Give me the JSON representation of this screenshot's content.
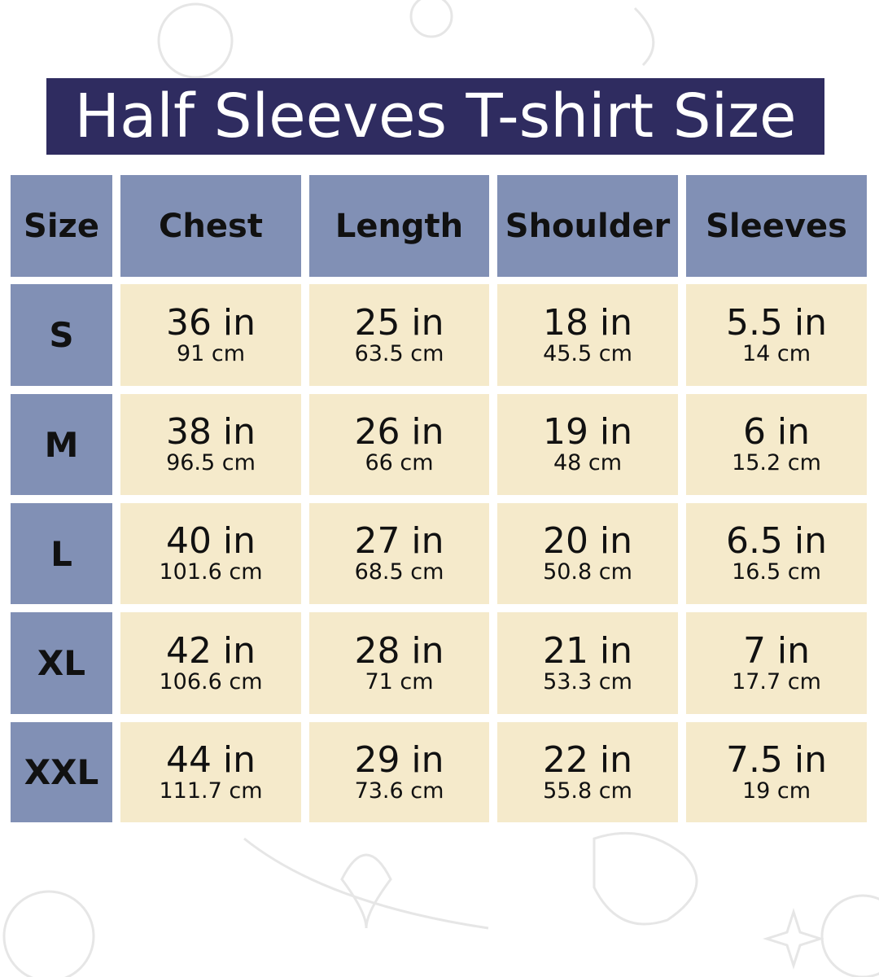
{
  "title": "Half Sleeves T-shirt Size",
  "colors": {
    "title_bg": "#2f2c60",
    "header_bg": "#8190b5",
    "cell_bg": "#f5eacb"
  },
  "headers": [
    "Size",
    "Chest",
    "Length",
    "Shoulder",
    "Sleeves"
  ],
  "rows": [
    {
      "size": "S",
      "values": [
        {
          "in": "36 in",
          "cm": "91 cm"
        },
        {
          "in": "25 in",
          "cm": "63.5 cm"
        },
        {
          "in": "18 in",
          "cm": "45.5 cm"
        },
        {
          "in": "5.5 in",
          "cm": "14 cm"
        }
      ]
    },
    {
      "size": "M",
      "values": [
        {
          "in": "38 in",
          "cm": "96.5 cm"
        },
        {
          "in": "26 in",
          "cm": "66 cm"
        },
        {
          "in": "19 in",
          "cm": "48 cm"
        },
        {
          "in": "6 in",
          "cm": "15.2 cm"
        }
      ]
    },
    {
      "size": "L",
      "values": [
        {
          "in": "40 in",
          "cm": "101.6 cm"
        },
        {
          "in": "27 in",
          "cm": "68.5 cm"
        },
        {
          "in": "20 in",
          "cm": "50.8 cm"
        },
        {
          "in": "6.5 in",
          "cm": "16.5 cm"
        }
      ]
    },
    {
      "size": "XL",
      "values": [
        {
          "in": "42 in",
          "cm": "106.6 cm"
        },
        {
          "in": "28 in",
          "cm": "71 cm"
        },
        {
          "in": "21 in",
          "cm": "53.3 cm"
        },
        {
          "in": "7 in",
          "cm": "17.7 cm"
        }
      ]
    },
    {
      "size": "XXL",
      "values": [
        {
          "in": "44 in",
          "cm": "111.7 cm"
        },
        {
          "in": "29 in",
          "cm": "73.6 cm"
        },
        {
          "in": "22 in",
          "cm": "55.8 cm"
        },
        {
          "in": "7.5 in",
          "cm": "19 cm"
        }
      ]
    }
  ]
}
